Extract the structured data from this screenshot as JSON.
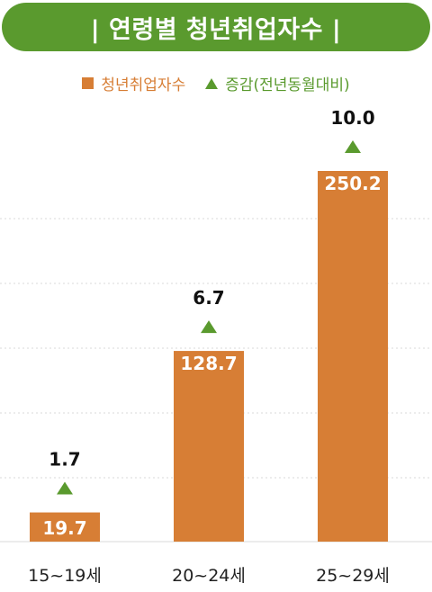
{
  "title": "| 연령별 청년취업자수 |",
  "legend": {
    "bar_label": "청년취업자수",
    "change_label": "증감(전년동월대비)"
  },
  "colors": {
    "bar": "#d77e35",
    "accent_green": "#5a9a2e",
    "grid": "#d9d9d9"
  },
  "chart_data": {
    "type": "bar",
    "title": "| 연령별 청년취업자수 |",
    "categories": [
      "15~19세",
      "20~24세",
      "25~29세"
    ],
    "series": [
      {
        "name": "청년취업자수",
        "values": [
          19.7,
          128.7,
          250.2
        ]
      },
      {
        "name": "증감(전년동월대비)",
        "values": [
          1.7,
          6.7,
          10.0
        ],
        "marker": "triangle-up"
      }
    ],
    "value_labels": [
      "19.7",
      "128.7",
      "250.2"
    ],
    "change_labels": [
      "1.7",
      "6.7",
      "10.0"
    ],
    "ylim": [
      0,
      250.2
    ],
    "grid": true
  }
}
